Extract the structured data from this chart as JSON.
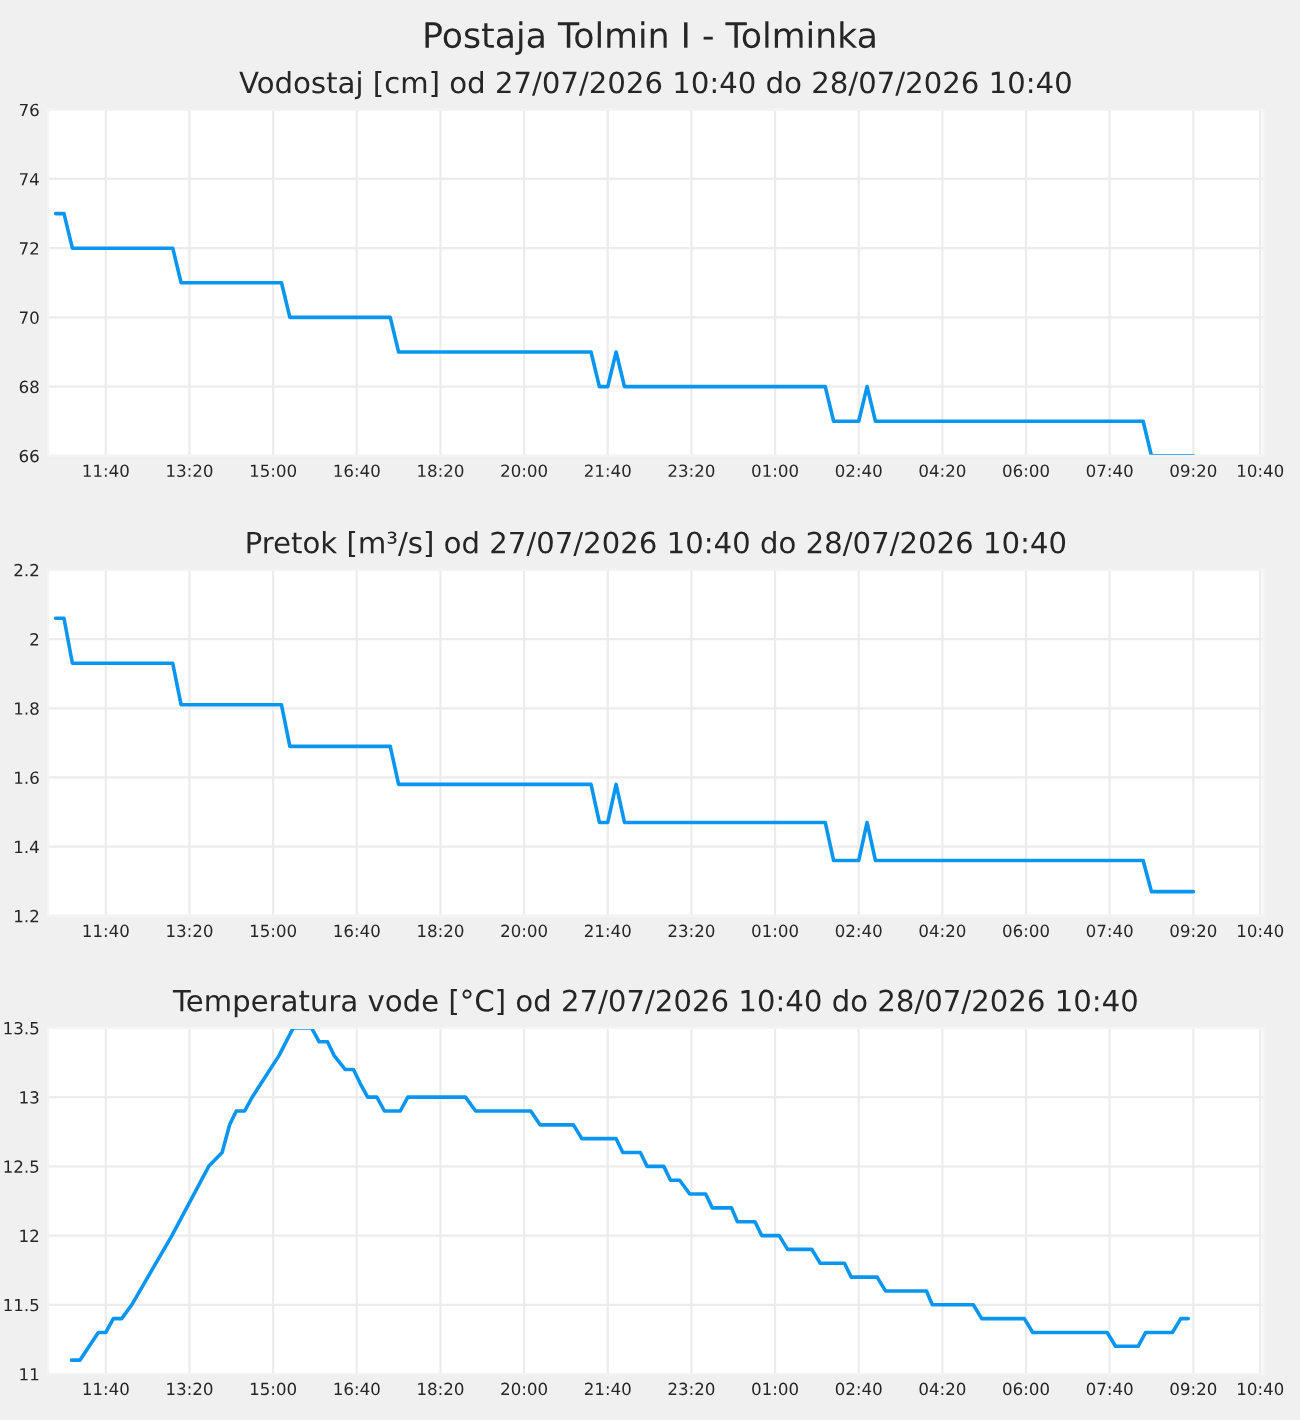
{
  "chart_data": [
    {
      "type": "line",
      "title": "Vodostaj [cm] od 27/07/2026 10:40 do 28/07/2026 10:40",
      "annotations": [
        "Postaja Tolmin I - Tolminka"
      ],
      "x": [
        "2026-07-27T10:40",
        "2026-07-27T10:50",
        "2026-07-27T11:00",
        "2026-07-27T13:00",
        "2026-07-27T13:10",
        "2026-07-27T15:10",
        "2026-07-27T15:20",
        "2026-07-27T17:20",
        "2026-07-27T17:30",
        "2026-07-27T21:20",
        "2026-07-27T21:30",
        "2026-07-27T21:40",
        "2026-07-27T21:50",
        "2026-07-27T22:00",
        "2026-07-28T02:00",
        "2026-07-28T02:10",
        "2026-07-28T02:40",
        "2026-07-28T02:50",
        "2026-07-28T03:00",
        "2026-07-28T08:20",
        "2026-07-28T08:30",
        "2026-07-28T09:20"
      ],
      "series": [
        {
          "color": "#0a96f0",
          "values": [
            73,
            73,
            72,
            72,
            71,
            71,
            70,
            70,
            69,
            69,
            68,
            68,
            69,
            68,
            68,
            67,
            67,
            68,
            67,
            67,
            66,
            66
          ]
        }
      ],
      "xlim": [
        "2026-07-27T10:31",
        "2026-07-28T10:44"
      ],
      "xticks": [
        {
          "value": "2026-07-27T11:40",
          "label": "11:40"
        },
        {
          "value": "2026-07-27T13:20",
          "label": "13:20"
        },
        {
          "value": "2026-07-27T15:00",
          "label": "15:00"
        },
        {
          "value": "2026-07-27T16:40",
          "label": "16:40"
        },
        {
          "value": "2026-07-27T18:20",
          "label": "18:20"
        },
        {
          "value": "2026-07-27T20:00",
          "label": "20:00"
        },
        {
          "value": "2026-07-27T21:40",
          "label": "21:40"
        },
        {
          "value": "2026-07-27T23:20",
          "label": "23:20"
        },
        {
          "value": "2026-07-28T01:00",
          "label": "01:00"
        },
        {
          "value": "2026-07-28T02:40",
          "label": "02:40"
        },
        {
          "value": "2026-07-28T04:20",
          "label": "04:20"
        },
        {
          "value": "2026-07-28T06:00",
          "label": "06:00"
        },
        {
          "value": "2026-07-28T07:40",
          "label": "07:40"
        },
        {
          "value": "2026-07-28T09:20",
          "label": "09:20"
        },
        {
          "value": "2026-07-28T10:40",
          "label": "10:40"
        }
      ],
      "ylim": [
        66,
        76
      ],
      "yticks": [
        66,
        68,
        70,
        72,
        74,
        76
      ],
      "grid": true,
      "marker": "none",
      "line_style": "solid"
    },
    {
      "type": "line",
      "title": "Pretok [m³/s] od 27/07/2026 10:40 do 28/07/2026 10:40",
      "x": [
        "2026-07-27T10:40",
        "2026-07-27T10:50",
        "2026-07-27T11:00",
        "2026-07-27T13:00",
        "2026-07-27T13:10",
        "2026-07-27T15:10",
        "2026-07-27T15:20",
        "2026-07-27T17:20",
        "2026-07-27T17:30",
        "2026-07-27T21:20",
        "2026-07-27T21:30",
        "2026-07-27T21:40",
        "2026-07-27T21:50",
        "2026-07-27T22:00",
        "2026-07-28T02:00",
        "2026-07-28T02:10",
        "2026-07-28T02:40",
        "2026-07-28T02:50",
        "2026-07-28T03:00",
        "2026-07-28T08:20",
        "2026-07-28T08:30",
        "2026-07-28T09:20"
      ],
      "series": [
        {
          "color": "#0a96f0",
          "values": [
            2.06,
            2.06,
            1.93,
            1.93,
            1.81,
            1.81,
            1.69,
            1.69,
            1.58,
            1.58,
            1.47,
            1.47,
            1.58,
            1.47,
            1.47,
            1.36,
            1.36,
            1.47,
            1.36,
            1.36,
            1.27,
            1.27
          ]
        }
      ],
      "xlim": [
        "2026-07-27T10:31",
        "2026-07-28T10:44"
      ],
      "xticks": [
        {
          "value": "2026-07-27T11:40",
          "label": "11:40"
        },
        {
          "value": "2026-07-27T13:20",
          "label": "13:20"
        },
        {
          "value": "2026-07-27T15:00",
          "label": "15:00"
        },
        {
          "value": "2026-07-27T16:40",
          "label": "16:40"
        },
        {
          "value": "2026-07-27T18:20",
          "label": "18:20"
        },
        {
          "value": "2026-07-27T20:00",
          "label": "20:00"
        },
        {
          "value": "2026-07-27T21:40",
          "label": "21:40"
        },
        {
          "value": "2026-07-27T23:20",
          "label": "23:20"
        },
        {
          "value": "2026-07-28T01:00",
          "label": "01:00"
        },
        {
          "value": "2026-07-28T02:40",
          "label": "02:40"
        },
        {
          "value": "2026-07-28T04:20",
          "label": "04:20"
        },
        {
          "value": "2026-07-28T06:00",
          "label": "06:00"
        },
        {
          "value": "2026-07-28T07:40",
          "label": "07:40"
        },
        {
          "value": "2026-07-28T09:20",
          "label": "09:20"
        },
        {
          "value": "2026-07-28T10:40",
          "label": "10:40"
        }
      ],
      "ylim": [
        1.2,
        2.2
      ],
      "yticks": [
        1.2,
        1.4,
        1.6,
        1.8,
        2,
        2.2
      ],
      "grid": true,
      "marker": "none",
      "line_style": "solid"
    },
    {
      "type": "line",
      "title": "Temperatura vode [°C] od 27/07/2026 10:40 do 28/07/2026 10:40",
      "x": [
        "2026-07-27T10:59",
        "2026-07-27T11:09",
        "2026-07-27T11:31",
        "2026-07-27T11:40",
        "2026-07-27T11:49",
        "2026-07-27T11:59",
        "2026-07-27T12:11",
        "2026-07-27T12:59",
        "2026-07-27T13:43",
        "2026-07-27T13:59",
        "2026-07-27T14:08",
        "2026-07-27T14:16",
        "2026-07-27T14:26",
        "2026-07-27T14:35",
        "2026-07-27T15:07",
        "2026-07-27T15:24",
        "2026-07-27T15:46",
        "2026-07-27T15:55",
        "2026-07-27T16:05",
        "2026-07-27T16:13",
        "2026-07-27T16:26",
        "2026-07-27T16:36",
        "2026-07-27T16:44",
        "2026-07-27T16:53",
        "2026-07-27T17:04",
        "2026-07-27T17:13",
        "2026-07-27T17:32",
        "2026-07-27T17:41",
        "2026-07-27T18:50",
        "2026-07-27T19:02",
        "2026-07-27T20:08",
        "2026-07-27T20:19",
        "2026-07-27T20:59",
        "2026-07-27T21:09",
        "2026-07-27T21:50",
        "2026-07-27T21:58",
        "2026-07-27T22:19",
        "2026-07-27T22:27",
        "2026-07-27T22:47",
        "2026-07-27T22:55",
        "2026-07-27T23:06",
        "2026-07-27T23:18",
        "2026-07-27T23:37",
        "2026-07-27T23:45",
        "2026-07-28T00:08",
        "2026-07-28T00:15",
        "2026-07-28T00:36",
        "2026-07-28T00:44",
        "2026-07-28T01:05",
        "2026-07-28T01:15",
        "2026-07-28T01:44",
        "2026-07-28T01:54",
        "2026-07-28T02:23",
        "2026-07-28T02:31",
        "2026-07-28T03:02",
        "2026-07-28T03:12",
        "2026-07-28T04:01",
        "2026-07-28T04:08",
        "2026-07-28T04:57",
        "2026-07-28T05:07",
        "2026-07-28T05:58",
        "2026-07-28T06:08",
        "2026-07-28T07:37",
        "2026-07-28T07:47",
        "2026-07-28T08:14",
        "2026-07-28T08:23",
        "2026-07-28T08:55",
        "2026-07-28T09:05",
        "2026-07-28T09:14"
      ],
      "series": [
        {
          "color": "#0a96f0",
          "values": [
            11.1,
            11.1,
            11.3,
            11.3,
            11.4,
            11.4,
            11.5,
            12.0,
            12.5,
            12.6,
            12.8,
            12.9,
            12.9,
            13.0,
            13.3,
            13.5,
            13.5,
            13.4,
            13.4,
            13.3,
            13.2,
            13.2,
            13.1,
            13.0,
            13.0,
            12.9,
            12.9,
            13.0,
            13.0,
            12.9,
            12.9,
            12.8,
            12.8,
            12.7,
            12.7,
            12.6,
            12.6,
            12.5,
            12.5,
            12.4,
            12.4,
            12.3,
            12.3,
            12.2,
            12.2,
            12.1,
            12.1,
            12.0,
            12.0,
            11.9,
            11.9,
            11.8,
            11.8,
            11.7,
            11.7,
            11.6,
            11.6,
            11.5,
            11.5,
            11.4,
            11.4,
            11.3,
            11.3,
            11.2,
            11.2,
            11.3,
            11.3,
            11.4,
            11.4
          ]
        }
      ],
      "xlim": [
        "2026-07-27T10:31",
        "2026-07-28T10:44"
      ],
      "xticks": [
        {
          "value": "2026-07-27T11:40",
          "label": "11:40"
        },
        {
          "value": "2026-07-27T13:20",
          "label": "13:20"
        },
        {
          "value": "2026-07-27T15:00",
          "label": "15:00"
        },
        {
          "value": "2026-07-27T16:40",
          "label": "16:40"
        },
        {
          "value": "2026-07-27T18:20",
          "label": "18:20"
        },
        {
          "value": "2026-07-27T20:00",
          "label": "20:00"
        },
        {
          "value": "2026-07-27T21:40",
          "label": "21:40"
        },
        {
          "value": "2026-07-27T23:20",
          "label": "23:20"
        },
        {
          "value": "2026-07-28T01:00",
          "label": "01:00"
        },
        {
          "value": "2026-07-28T02:40",
          "label": "02:40"
        },
        {
          "value": "2026-07-28T04:20",
          "label": "04:20"
        },
        {
          "value": "2026-07-28T06:00",
          "label": "06:00"
        },
        {
          "value": "2026-07-28T07:40",
          "label": "07:40"
        },
        {
          "value": "2026-07-28T09:20",
          "label": "09:20"
        },
        {
          "value": "2026-07-28T10:40",
          "label": "10:40"
        }
      ],
      "ylim": [
        11,
        13.5
      ],
      "yticks": [
        11,
        11.5,
        12,
        12.5,
        13,
        13.5
      ],
      "grid": true,
      "marker": "none",
      "line_style": "solid"
    }
  ]
}
